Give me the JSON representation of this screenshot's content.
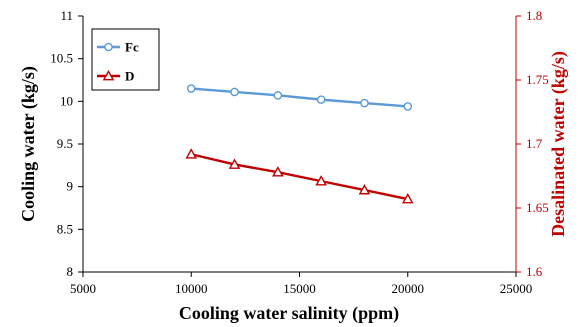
{
  "chart_data": {
    "type": "line",
    "title": "",
    "xlabel": "Cooling water salinity (ppm)",
    "ylabel": "Cooling water (kg/s)",
    "y2label": "Desalinated water (kg/s)",
    "xlim": [
      5000,
      25000
    ],
    "ylim": [
      8,
      11
    ],
    "y2lim": [
      1.6,
      1.8
    ],
    "x_ticks": [
      "5000",
      "10000",
      "15000",
      "20000",
      "25000"
    ],
    "y_ticks": [
      "8",
      "8.5",
      "9",
      "9.5",
      "10",
      "10.5",
      "11"
    ],
    "y2_ticks": [
      "1.6",
      "1.65",
      "1.7",
      "1.75",
      "1.8"
    ],
    "grid": false,
    "legend_position": "top-left",
    "x": [
      10000,
      12000,
      14000,
      16000,
      18000,
      20000
    ],
    "series": [
      {
        "name": "Fc",
        "axis": "left",
        "marker": "circle",
        "color": "#5b9bd5",
        "values": [
          10.15,
          10.11,
          10.07,
          10.02,
          9.98,
          9.94
        ]
      },
      {
        "name": "D",
        "axis": "right",
        "marker": "triangle",
        "color": "#c00000",
        "values": [
          1.692,
          1.684,
          1.678,
          1.671,
          1.664,
          1.657
        ]
      }
    ]
  }
}
